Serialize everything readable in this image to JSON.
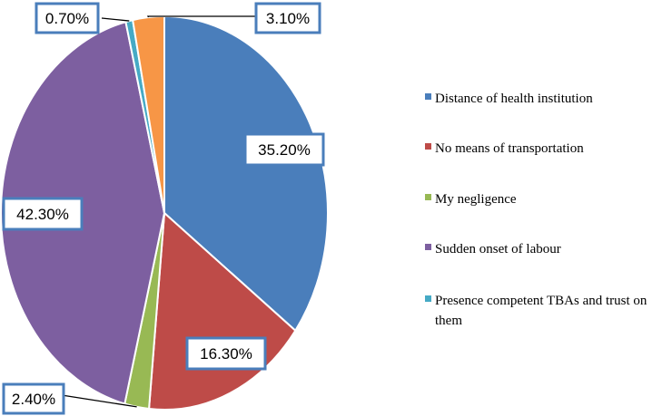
{
  "chart_data": {
    "type": "pie",
    "title": "",
    "slices": [
      {
        "label": "Distance of health institution",
        "value": 35.2,
        "display": "35.20%",
        "color": "#4a7ebb"
      },
      {
        "label": "No means of transportation",
        "value": 16.3,
        "display": "16.30%",
        "color": "#be4b48"
      },
      {
        "label": "My negligence",
        "value": 2.4,
        "display": "2.40%",
        "color": "#98b954"
      },
      {
        "label": "Sudden onset of labour",
        "value": 42.3,
        "display": "42.30%",
        "color": "#7d5fa0"
      },
      {
        "label": "Presence competent TBAs and trust on them",
        "legend_lines": [
          "Presence competent TBAs and trust on",
          "them"
        ],
        "value": 0.7,
        "display": "0.70%",
        "color": "#46aac5"
      },
      {
        "label": "",
        "value": 3.1,
        "display": "3.10%",
        "color": "#f79646"
      }
    ],
    "legend_position": "right",
    "legend_entries": 5
  }
}
